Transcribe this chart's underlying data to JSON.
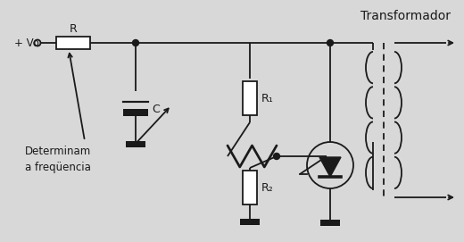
{
  "title": "Transformador",
  "label_v": "+ Vo",
  "label_r": "R",
  "label_c": "C",
  "label_r1": "R₁",
  "label_r2": "R₂",
  "label_det": "Determinam\na freqüencia",
  "bg_color": "#d8d8d8",
  "line_color": "#1a1a1a",
  "fig_width": 5.2,
  "fig_height": 2.71
}
